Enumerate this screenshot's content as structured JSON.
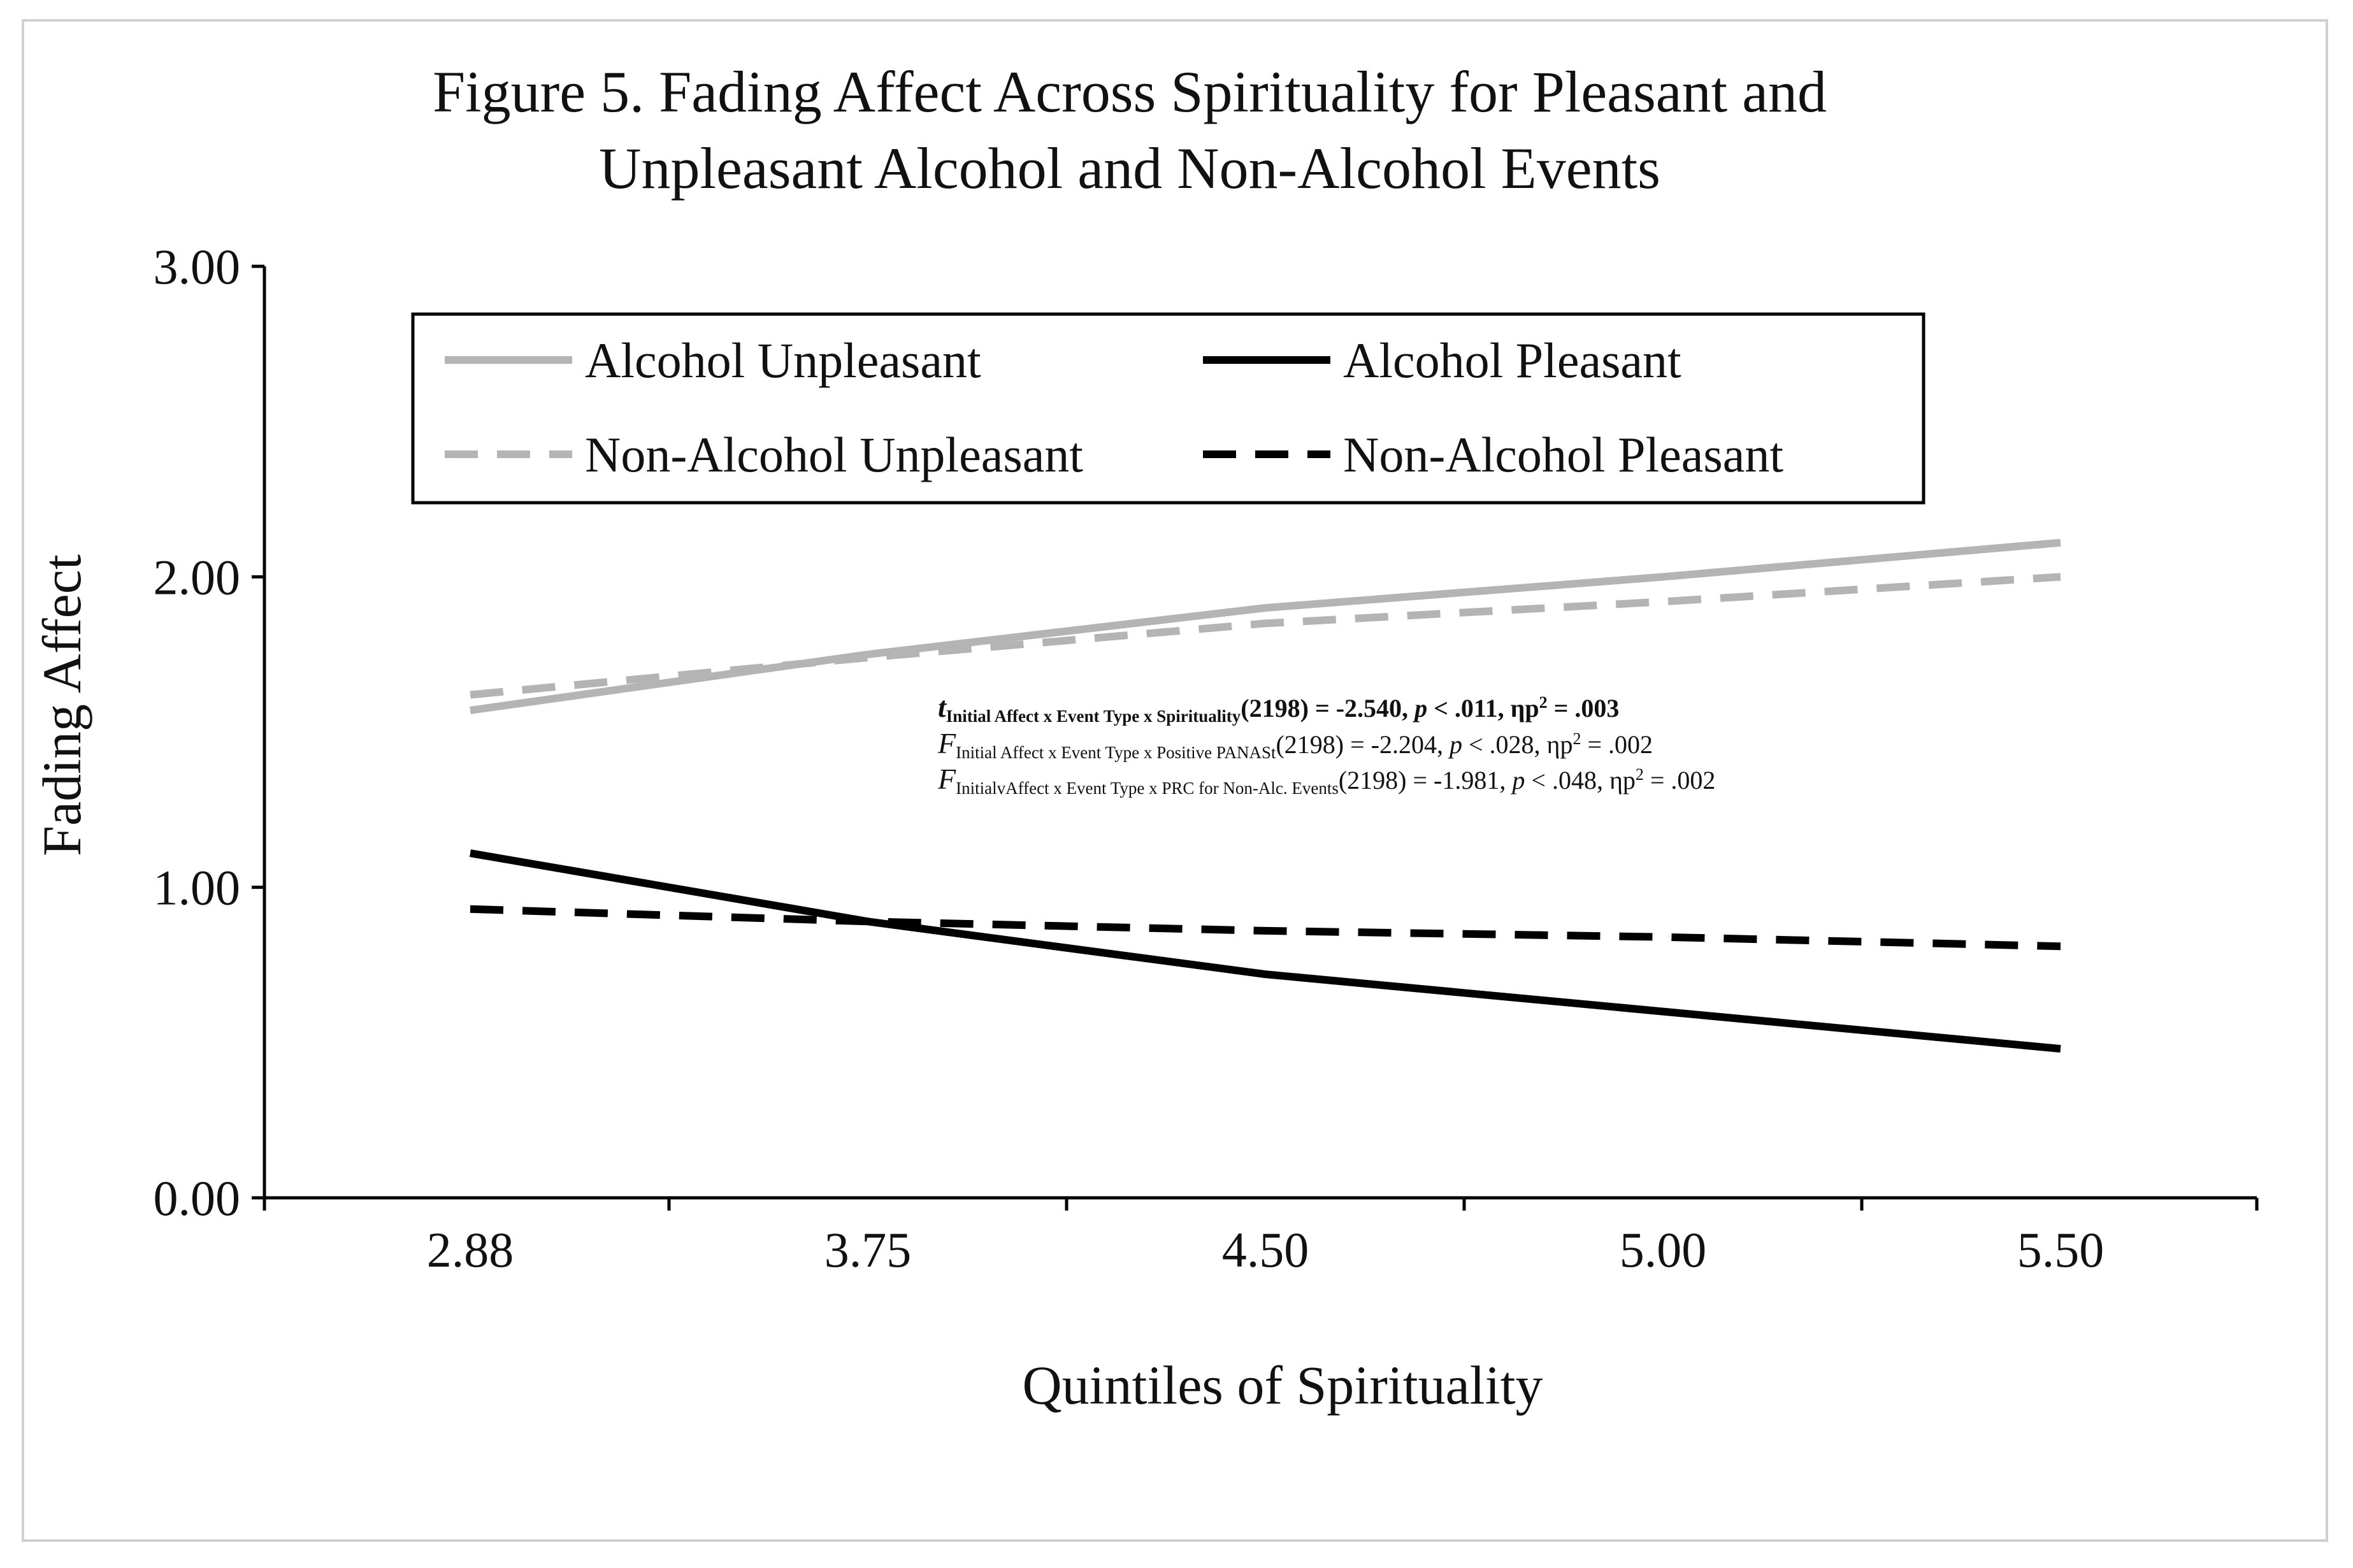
{
  "chart_data": {
    "type": "line",
    "title_line1": "Figure 5. Fading Affect Across Spirituality for Pleasant and",
    "title_line2": "Unpleasant Alcohol and Non-Alcohol Events",
    "xlabel": "Quintiles of Spirituality",
    "ylabel": "Fading Affect",
    "categories": [
      "2.88",
      "3.75",
      "4.50",
      "5.00",
      "5.50"
    ],
    "ylim": [
      0,
      3
    ],
    "yticks": [
      "0.00",
      "1.00",
      "2.00",
      "3.00"
    ],
    "legend_position": "top",
    "series": [
      {
        "name": "Alcohol Unpleasant",
        "values": [
          1.57,
          1.75,
          1.9,
          2.0,
          2.11
        ],
        "color": "#b4b4b4",
        "dash": "solid"
      },
      {
        "name": "Alcohol Pleasant",
        "values": [
          1.11,
          0.89,
          0.72,
          0.6,
          0.48
        ],
        "color": "#000000",
        "dash": "solid"
      },
      {
        "name": "Non-Alcohol Unpleasant",
        "values": [
          1.62,
          1.74,
          1.85,
          1.92,
          2.0
        ],
        "color": "#b4b4b4",
        "dash": "dashed"
      },
      {
        "name": "Non-Alcohol Pleasant",
        "values": [
          0.93,
          0.89,
          0.86,
          0.84,
          0.81
        ],
        "color": "#000000",
        "dash": "dashed"
      }
    ],
    "annotations": [
      {
        "letter": "t",
        "sub": "Initial Affect x Event Type x Spirituality",
        "stat": "(2198) = -2.540, ",
        "p": "p",
        "p_rest": " < .011, ηp",
        "sup": "2",
        "end": " = .003",
        "bold": true
      },
      {
        "letter": "F",
        "sub": "Initial Affect  x Event Type x Positive PANASt",
        "stat": "(2198) = -2.204, ",
        "p": "p",
        "p_rest": " < .028, ηp",
        "sup": "2",
        "end": " = .002",
        "bold": false
      },
      {
        "letter": "F",
        "sub": "InitialvAffect  x Event Type x PRC for Non-Alc. Events",
        "stat": "(2198) = -1.981, ",
        "p": "p",
        "p_rest": " < .048, ηp",
        "sup": "2",
        "end": " = .002",
        "bold": false
      }
    ]
  }
}
